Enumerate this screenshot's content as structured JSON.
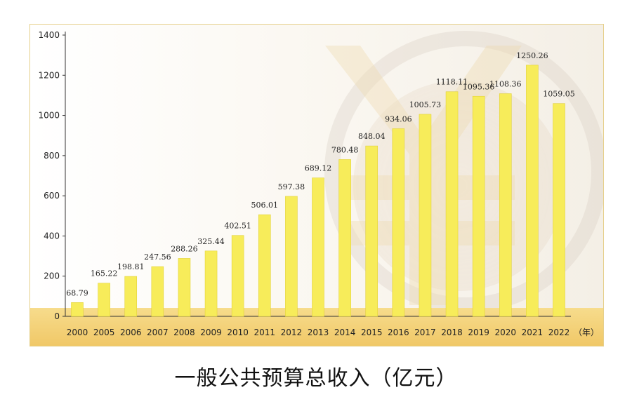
{
  "chart_data": {
    "type": "bar",
    "title": "一般公共预算总收入（亿元）",
    "x_unit": "（年）",
    "categories": [
      "2000",
      "2005",
      "2006",
      "2007",
      "2008",
      "2009",
      "2010",
      "2011",
      "2012",
      "2013",
      "2014",
      "2015",
      "2016",
      "2017",
      "2018",
      "2019",
      "2020",
      "2021",
      "2022"
    ],
    "values": [
      68.79,
      165.22,
      198.81,
      247.56,
      288.26,
      325.44,
      402.51,
      506.01,
      597.38,
      689.12,
      780.48,
      848.04,
      934.06,
      1005.73,
      1118.11,
      1095.36,
      1108.36,
      1250.26,
      1059.05
    ],
    "data_labels": [
      "68.79",
      "165.22",
      "198.81",
      "247.56",
      "288.26",
      "325.44",
      "402.51",
      "506.01",
      "597.38",
      "689.12",
      "780.48",
      "848.04",
      "934.06",
      "1005.73",
      "1118.11",
      "1095.36",
      "1108.36",
      "1250.26",
      "1059.05"
    ],
    "yticks": [
      "0",
      "200",
      "400",
      "600",
      "800",
      "1000",
      "1200",
      "1400"
    ],
    "ylim": [
      0,
      1400
    ],
    "grid": false,
    "legend": "none",
    "colors": {
      "bar": "#f7ec5a",
      "bar_edge": "#e2d23a",
      "base_band": "#f3d27a",
      "axis": "#333333"
    }
  }
}
